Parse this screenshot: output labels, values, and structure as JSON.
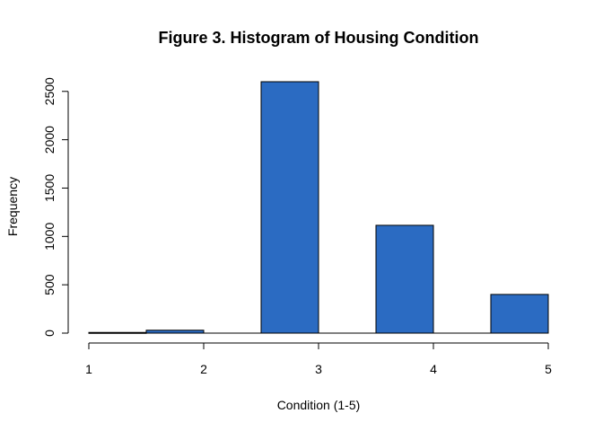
{
  "chart_data": {
    "type": "bar",
    "title": "Figure 3. Histogram of Housing Condition",
    "xlabel": "Condition (1-5)",
    "ylabel": "Frequency",
    "bins": [
      [
        1.0,
        1.5
      ],
      [
        1.5,
        2.0
      ],
      [
        2.0,
        2.5
      ],
      [
        2.5,
        3.0
      ],
      [
        3.0,
        3.5
      ],
      [
        3.5,
        4.0
      ],
      [
        4.0,
        4.5
      ],
      [
        4.5,
        5.0
      ]
    ],
    "values": [
      7,
      30,
      0,
      2600,
      0,
      1115,
      0,
      400
    ],
    "xlim": [
      1,
      5
    ],
    "ylim": [
      0,
      2600
    ],
    "xticks": [
      1,
      2,
      3,
      4,
      5
    ],
    "yticks": [
      0,
      500,
      1000,
      1500,
      2000,
      2500
    ],
    "bar_color": "#2B6BC2",
    "grid": false
  }
}
